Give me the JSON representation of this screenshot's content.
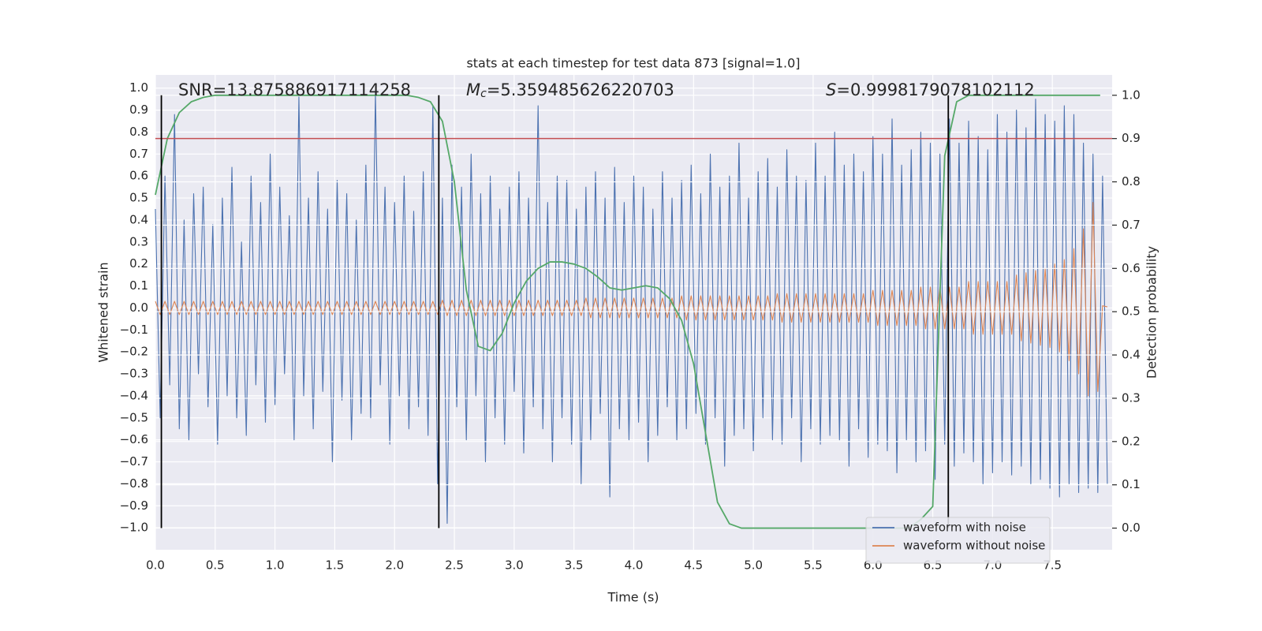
{
  "chart_data": {
    "type": "line",
    "title": "stats at each timestep for test data 873 [signal=1.0]",
    "xlabel": "Time (s)",
    "ylabel": "Whitened strain",
    "y2label": "Detection probability",
    "annotations": [
      {
        "text": "SNR=13.875886917114258"
      },
      {
        "symbol": "M",
        "subscript": "c",
        "text": "=5.359485626220703"
      },
      {
        "symbol": "S",
        "text": "=0.9998179078102112"
      }
    ],
    "xlim": [
      0,
      8
    ],
    "ylim": [
      -1.1,
      1.06
    ],
    "y2lim": [
      -0.05,
      1.047
    ],
    "xticks": [
      {
        "value": 0,
        "label": "0.0"
      },
      0.5,
      {
        "value": 1,
        "label": "1.0"
      },
      1.5,
      {
        "value": 2,
        "label": "2.0"
      },
      2.5,
      {
        "value": 3,
        "label": "3.0"
      },
      3.5,
      {
        "value": 4,
        "label": "4.0"
      },
      4.5,
      {
        "value": 5,
        "label": "5.0"
      },
      5.5,
      {
        "value": 6,
        "label": "6.0"
      },
      6.5,
      {
        "value": 7,
        "label": "7.0"
      },
      7.5
    ],
    "yticks": [
      {
        "value": -1,
        "label": "−1.0"
      },
      {
        "value": -0.9,
        "label": "−0.9"
      },
      {
        "value": -0.8,
        "label": "−0.8"
      },
      {
        "value": -0.7,
        "label": "−0.7"
      },
      {
        "value": -0.6,
        "label": "−0.6"
      },
      {
        "value": -0.5,
        "label": "−0.5"
      },
      {
        "value": -0.4,
        "label": "−0.4"
      },
      {
        "value": -0.3,
        "label": "−0.3"
      },
      {
        "value": -0.2,
        "label": "−0.2"
      },
      {
        "value": -0.1,
        "label": "−0.1"
      },
      {
        "value": 0,
        "label": "0.0"
      },
      0.1,
      0.2,
      0.3,
      0.4,
      0.5,
      0.6,
      0.7,
      0.8,
      0.9,
      {
        "value": 1,
        "label": "1.0"
      }
    ],
    "y2ticks": [
      {
        "value": 0,
        "label": "0.0"
      },
      0.1,
      0.2,
      0.3,
      0.4,
      0.5,
      0.6,
      0.7,
      0.8,
      0.9,
      {
        "value": 1,
        "label": "1.0"
      }
    ],
    "grid": true,
    "legend": "lower right",
    "hlines": [
      {
        "value": 0.9,
        "axis": "y2",
        "color": "#c44e52"
      }
    ],
    "vlines": {
      "x": [
        0.05,
        2.37,
        6.63
      ],
      "color": "#000000"
    },
    "x": [
      0,
      0.04,
      0.08,
      0.12,
      0.16,
      0.2,
      0.24,
      0.28,
      0.32,
      0.36,
      0.4,
      0.44,
      0.48,
      0.52,
      0.56,
      0.6,
      0.64,
      0.68,
      0.72,
      0.76,
      0.8,
      0.84,
      0.88,
      0.92,
      0.96,
      1,
      1.04,
      1.08,
      1.12,
      1.16,
      1.2,
      1.24,
      1.28,
      1.32,
      1.36,
      1.4,
      1.44,
      1.48,
      1.52,
      1.56,
      1.6,
      1.64,
      1.68,
      1.72,
      1.76,
      1.8,
      1.84,
      1.88,
      1.92,
      1.96,
      2,
      2.04,
      2.08,
      2.12,
      2.16,
      2.2,
      2.24,
      2.28,
      2.32,
      2.36,
      2.4,
      2.44,
      2.48,
      2.52,
      2.56,
      2.6,
      2.64,
      2.68,
      2.72,
      2.76,
      2.8,
      2.84,
      2.88,
      2.92,
      2.96,
      3,
      3.04,
      3.08,
      3.12,
      3.16,
      3.2,
      3.24,
      3.28,
      3.32,
      3.36,
      3.4,
      3.44,
      3.48,
      3.52,
      3.56,
      3.6,
      3.64,
      3.68,
      3.72,
      3.76,
      3.8,
      3.84,
      3.88,
      3.92,
      3.96,
      4,
      4.04,
      4.08,
      4.12,
      4.16,
      4.2,
      4.24,
      4.28,
      4.32,
      4.36,
      4.4,
      4.44,
      4.48,
      4.52,
      4.56,
      4.6,
      4.64,
      4.68,
      4.72,
      4.76,
      4.8,
      4.84,
      4.88,
      4.92,
      4.96,
      5,
      5.04,
      5.08,
      5.12,
      5.16,
      5.2,
      5.24,
      5.28,
      5.32,
      5.36,
      5.4,
      5.44,
      5.48,
      5.52,
      5.56,
      5.6,
      5.64,
      5.68,
      5.72,
      5.76,
      5.8,
      5.84,
      5.88,
      5.92,
      5.96,
      6,
      6.04,
      6.08,
      6.12,
      6.16,
      6.2,
      6.24,
      6.28,
      6.32,
      6.36,
      6.4,
      6.44,
      6.48,
      6.52,
      6.56,
      6.6,
      6.64,
      6.68,
      6.72,
      6.76,
      6.8,
      6.84,
      6.88,
      6.92,
      6.96,
      7,
      7.04,
      7.08,
      7.12,
      7.16,
      7.2,
      7.24,
      7.28,
      7.32,
      7.36,
      7.4,
      7.44,
      7.48,
      7.52,
      7.56,
      7.6,
      7.64,
      7.68,
      7.72,
      7.76,
      7.8,
      7.84,
      7.88,
      7.92,
      7.96
    ],
    "series": [
      {
        "name": "waveform with noise",
        "color": "#4c72b0",
        "values": [
          0.45,
          -0.5,
          0.6,
          -0.35,
          0.88,
          -0.55,
          0.4,
          -0.6,
          0.52,
          -0.3,
          0.55,
          -0.45,
          0.38,
          -0.62,
          0.5,
          -0.4,
          0.64,
          -0.5,
          0.3,
          -0.58,
          0.6,
          -0.35,
          0.48,
          -0.52,
          0.7,
          -0.44,
          0.55,
          -0.3,
          0.42,
          -0.6,
          0.96,
          -0.4,
          0.5,
          -0.55,
          0.62,
          -0.38,
          0.45,
          -0.7,
          0.58,
          -0.42,
          0.52,
          -0.6,
          0.4,
          -0.48,
          0.65,
          -0.5,
          0.98,
          -0.35,
          0.55,
          -0.62,
          0.48,
          -0.4,
          0.6,
          -0.55,
          0.44,
          -0.45,
          0.62,
          -0.58,
          0.92,
          -0.8,
          0.5,
          -0.98,
          0.65,
          -0.45,
          0.55,
          -0.6,
          0.7,
          -0.4,
          0.52,
          -0.7,
          0.6,
          -0.5,
          0.45,
          -0.62,
          0.55,
          -0.38,
          0.62,
          -0.66,
          0.5,
          -0.45,
          0.92,
          -0.55,
          0.48,
          -0.7,
          0.6,
          -0.5,
          0.58,
          -0.62,
          0.45,
          -0.8,
          0.55,
          -0.6,
          0.62,
          -0.48,
          0.5,
          -0.86,
          0.64,
          -0.55,
          0.48,
          -0.6,
          0.6,
          -0.52,
          0.55,
          -0.7,
          0.45,
          -0.58,
          0.62,
          -0.45,
          0.5,
          -0.6,
          0.58,
          -0.55,
          0.65,
          -0.48,
          0.52,
          -0.62,
          0.7,
          -0.5,
          0.55,
          -0.72,
          0.6,
          -0.58,
          0.75,
          -0.55,
          0.5,
          -0.65,
          0.62,
          -0.5,
          0.68,
          -0.6,
          0.55,
          -0.62,
          0.72,
          -0.5,
          0.6,
          -0.7,
          0.58,
          -0.55,
          0.75,
          -0.62,
          0.6,
          -0.58,
          0.8,
          -0.6,
          0.65,
          -0.72,
          0.7,
          -0.55,
          0.62,
          -0.68,
          0.78,
          -0.62,
          0.7,
          -0.65,
          0.86,
          -0.75,
          0.65,
          -0.6,
          0.72,
          -0.7,
          0.8,
          -0.65,
          0.75,
          -0.78,
          0.7,
          -0.62,
          0.86,
          -0.72,
          0.75,
          -0.66,
          0.85,
          -0.7,
          0.78,
          -0.8,
          0.72,
          -0.75,
          0.88,
          -0.7,
          0.8,
          -0.76,
          0.9,
          -0.72,
          0.82,
          -0.8,
          0.95,
          -0.78,
          0.88,
          -0.82,
          0.85,
          -0.86,
          0.92,
          -0.8,
          0.88,
          -0.84,
          0.75,
          -0.82,
          0.7,
          -0.84,
          0.6,
          -0.8
        ]
      },
      {
        "name": "waveform without noise",
        "color": "#dd8452",
        "values": [
          0.03,
          -0.03,
          0.03,
          -0.03,
          0.03,
          -0.03,
          0.03,
          -0.03,
          0.03,
          -0.03,
          0.03,
          -0.03,
          0.03,
          -0.03,
          0.03,
          -0.03,
          0.03,
          -0.03,
          0.03,
          -0.03,
          0.03,
          -0.03,
          0.03,
          -0.03,
          0.03,
          -0.03,
          0.03,
          -0.03,
          0.03,
          -0.03,
          0.03,
          -0.03,
          0.03,
          -0.03,
          0.03,
          -0.03,
          0.03,
          -0.03,
          0.03,
          -0.03,
          0.03,
          -0.03,
          0.03,
          -0.03,
          0.03,
          -0.03,
          0.03,
          -0.03,
          0.03,
          -0.03,
          0.03,
          -0.03,
          0.03,
          -0.03,
          0.03,
          -0.03,
          0.03,
          -0.03,
          0.03,
          -0.03,
          0.035,
          -0.035,
          0.035,
          -0.035,
          0.035,
          -0.035,
          0.035,
          -0.035,
          0.035,
          -0.035,
          0.035,
          -0.035,
          0.035,
          -0.035,
          0.035,
          -0.035,
          0.035,
          -0.035,
          0.035,
          -0.035,
          0.035,
          -0.035,
          0.035,
          -0.035,
          0.035,
          -0.035,
          0.035,
          -0.035,
          0.035,
          -0.035,
          0.045,
          -0.045,
          0.045,
          -0.045,
          0.045,
          -0.045,
          0.045,
          -0.045,
          0.045,
          -0.045,
          0.045,
          -0.045,
          0.045,
          -0.045,
          0.045,
          -0.045,
          0.045,
          -0.045,
          0.045,
          -0.045,
          0.055,
          -0.055,
          0.055,
          -0.055,
          0.055,
          -0.055,
          0.055,
          -0.055,
          0.055,
          -0.055,
          0.055,
          -0.055,
          0.055,
          -0.055,
          0.055,
          -0.055,
          0.055,
          -0.055,
          0.055,
          -0.055,
          0.065,
          -0.065,
          0.065,
          -0.065,
          0.065,
          -0.065,
          0.065,
          -0.065,
          0.065,
          -0.065,
          0.065,
          -0.065,
          0.065,
          -0.065,
          0.065,
          -0.065,
          0.065,
          -0.065,
          0.065,
          -0.065,
          0.08,
          -0.08,
          0.08,
          -0.08,
          0.08,
          -0.08,
          0.08,
          -0.08,
          0.08,
          -0.08,
          0.095,
          -0.095,
          0.095,
          -0.095,
          0.095,
          -0.095,
          0.095,
          -0.095,
          0.095,
          -0.095,
          0.12,
          -0.12,
          0.12,
          -0.12,
          0.12,
          -0.12,
          0.12,
          -0.12,
          0.12,
          -0.12,
          0.15,
          -0.15,
          0.16,
          -0.16,
          0.17,
          -0.17,
          0.18,
          -0.18,
          0.2,
          -0.2,
          0.22,
          -0.24,
          0.27,
          -0.3,
          0.36,
          -0.4,
          0.48,
          -0.38,
          0.01,
          0.005
        ]
      },
      {
        "name": "Detection probability",
        "color": "#55a868",
        "axis": "y2",
        "legend": false,
        "x": [
          0,
          0.1,
          0.2,
          0.3,
          0.4,
          0.5,
          0.6,
          0.7,
          0.8,
          0.9,
          1,
          1.1,
          1.2,
          1.3,
          1.4,
          1.5,
          1.6,
          1.7,
          1.8,
          1.9,
          2,
          2.1,
          2.2,
          2.3,
          2.4,
          2.5,
          2.6,
          2.7,
          2.8,
          2.9,
          3,
          3.1,
          3.2,
          3.3,
          3.4,
          3.5,
          3.6,
          3.7,
          3.8,
          3.9,
          4,
          4.1,
          4.2,
          4.3,
          4.4,
          4.5,
          4.6,
          4.7,
          4.8,
          4.9,
          5,
          5.1,
          5.2,
          5.3,
          5.4,
          5.5,
          5.6,
          5.7,
          5.8,
          5.9,
          6,
          6.1,
          6.2,
          6.3,
          6.4,
          6.5,
          6.6,
          6.7,
          6.8,
          6.9,
          7,
          7.1,
          7.2,
          7.3,
          7.4,
          7.5,
          7.6,
          7.7,
          7.8,
          7.9
        ],
        "values": [
          0.77,
          0.9,
          0.96,
          0.985,
          0.995,
          1,
          1,
          1,
          1,
          1,
          1,
          1,
          1,
          1,
          1,
          1,
          1,
          1,
          1,
          1,
          1,
          1,
          0.995,
          0.985,
          0.94,
          0.8,
          0.55,
          0.42,
          0.41,
          0.45,
          0.52,
          0.57,
          0.6,
          0.615,
          0.615,
          0.61,
          0.6,
          0.58,
          0.555,
          0.55,
          0.555,
          0.56,
          0.555,
          0.53,
          0.48,
          0.38,
          0.22,
          0.06,
          0.01,
          0,
          0,
          0,
          0,
          0,
          0,
          0,
          0,
          0,
          0,
          0,
          0,
          0,
          0,
          0,
          0.02,
          0.05,
          0.86,
          0.985,
          1,
          1,
          1,
          1,
          1,
          1,
          1,
          1,
          1,
          1,
          1,
          1
        ]
      }
    ]
  }
}
